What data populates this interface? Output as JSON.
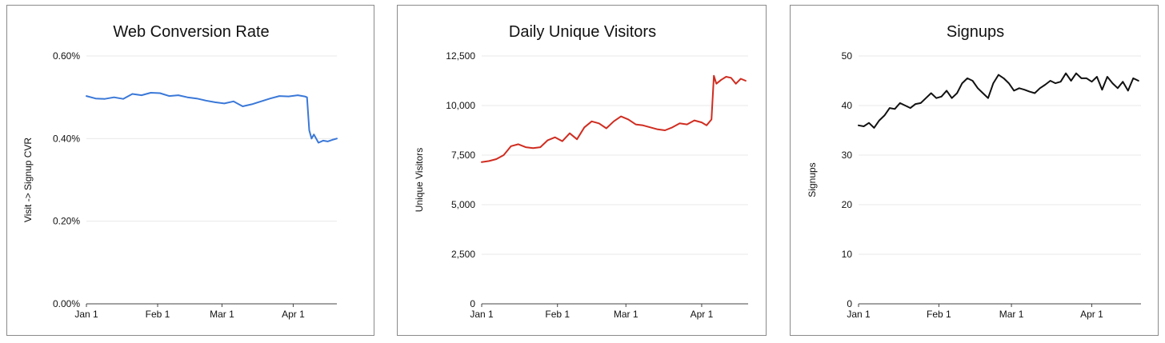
{
  "chart_data": [
    {
      "type": "line",
      "title": "Web Conversion Rate",
      "xlabel": "",
      "ylabel": "Visit -> Signup CVR",
      "ylim": [
        0,
        0.6
      ],
      "y_ticks": [
        "0.00%",
        "0.20%",
        "0.40%",
        "0.60%"
      ],
      "x_ticks": [
        "Jan 1",
        "Feb 1",
        "Mar 1",
        "Apr 1"
      ],
      "grid": true,
      "color": "#3a78d8",
      "series": [
        {
          "x": [
            "Jan 1",
            "Jan 5",
            "Jan 9",
            "Jan 13",
            "Jan 17",
            "Jan 21",
            "Jan 25",
            "Jan 29",
            "Feb 2",
            "Feb 6",
            "Feb 10",
            "Feb 14",
            "Feb 18",
            "Feb 22",
            "Feb 26",
            "Mar 2",
            "Mar 6",
            "Mar 10",
            "Mar 14",
            "Mar 18",
            "Mar 22",
            "Mar 26",
            "Mar 30",
            "Apr 3",
            "Apr 6",
            "Apr 7",
            "Apr 8",
            "Apr 9",
            "Apr 10",
            "Apr 12",
            "Apr 14",
            "Apr 16",
            "Apr 18",
            "Apr 20"
          ],
          "values": [
            0.503,
            0.497,
            0.496,
            0.5,
            0.496,
            0.508,
            0.505,
            0.511,
            0.51,
            0.503,
            0.505,
            0.5,
            0.497,
            0.492,
            0.488,
            0.485,
            0.49,
            0.478,
            0.483,
            0.49,
            0.497,
            0.503,
            0.502,
            0.505,
            0.502,
            0.5,
            0.42,
            0.4,
            0.41,
            0.39,
            0.395,
            0.393,
            0.397,
            0.4
          ]
        }
      ]
    },
    {
      "type": "line",
      "title": "Daily Unique Visitors",
      "xlabel": "",
      "ylabel": "Unique Visitors",
      "ylim": [
        0,
        12500
      ],
      "y_ticks": [
        "0",
        "2,500",
        "5,000",
        "7,500",
        "10,000",
        "12,500"
      ],
      "x_ticks": [
        "Jan 1",
        "Feb 1",
        "Mar 1",
        "Apr 1"
      ],
      "grid": true,
      "color": "#d02c20",
      "series": [
        {
          "x": [
            "Jan 1",
            "Jan 4",
            "Jan 7",
            "Jan 10",
            "Jan 13",
            "Jan 16",
            "Jan 19",
            "Jan 22",
            "Jan 25",
            "Jan 28",
            "Jan 31",
            "Feb 3",
            "Feb 6",
            "Feb 9",
            "Feb 12",
            "Feb 15",
            "Feb 18",
            "Feb 21",
            "Feb 24",
            "Feb 27",
            "Mar 2",
            "Mar 5",
            "Mar 8",
            "Mar 11",
            "Mar 14",
            "Mar 17",
            "Mar 20",
            "Mar 23",
            "Mar 26",
            "Mar 29",
            "Apr 1",
            "Apr 3",
            "Apr 5",
            "Apr 6",
            "Apr 7",
            "Apr 9",
            "Apr 11",
            "Apr 13",
            "Apr 15",
            "Apr 17",
            "Apr 19"
          ],
          "values": [
            7150,
            7200,
            7300,
            7500,
            7950,
            8050,
            7900,
            7850,
            7900,
            8250,
            8400,
            8200,
            8600,
            8300,
            8900,
            9200,
            9100,
            8850,
            9200,
            9450,
            9300,
            9050,
            9000,
            8900,
            8800,
            8750,
            8900,
            9100,
            9050,
            9250,
            9150,
            9000,
            9300,
            11500,
            11100,
            11300,
            11450,
            11400,
            11100,
            11350,
            11250
          ]
        }
      ]
    },
    {
      "type": "line",
      "title": "Signups",
      "xlabel": "",
      "ylabel": "Signups",
      "ylim": [
        0,
        50
      ],
      "y_ticks": [
        "0",
        "10",
        "20",
        "30",
        "40",
        "50"
      ],
      "x_ticks": [
        "Jan 1",
        "Feb 1",
        "Mar 1",
        "Apr 1"
      ],
      "grid": true,
      "color": "#111111",
      "series": [
        {
          "x": [
            "Jan 1",
            "Jan 3",
            "Jan 5",
            "Jan 7",
            "Jan 9",
            "Jan 11",
            "Jan 13",
            "Jan 15",
            "Jan 17",
            "Jan 19",
            "Jan 21",
            "Jan 23",
            "Jan 25",
            "Jan 27",
            "Jan 29",
            "Jan 31",
            "Feb 2",
            "Feb 4",
            "Feb 6",
            "Feb 8",
            "Feb 10",
            "Feb 12",
            "Feb 14",
            "Feb 16",
            "Feb 18",
            "Feb 20",
            "Feb 22",
            "Feb 24",
            "Feb 26",
            "Feb 28",
            "Mar 2",
            "Mar 4",
            "Mar 6",
            "Mar 8",
            "Mar 10",
            "Mar 12",
            "Mar 14",
            "Mar 16",
            "Mar 18",
            "Mar 20",
            "Mar 22",
            "Mar 24",
            "Mar 26",
            "Mar 28",
            "Mar 30",
            "Apr 1",
            "Apr 3",
            "Apr 5",
            "Apr 7",
            "Apr 9",
            "Apr 11",
            "Apr 13",
            "Apr 15",
            "Apr 17",
            "Apr 19"
          ],
          "values": [
            36,
            35.8,
            36.5,
            35.5,
            37,
            38,
            39.5,
            39.3,
            40.5,
            40,
            39.5,
            40.3,
            40.5,
            41.5,
            42.5,
            41.5,
            41.8,
            43,
            41.5,
            42.5,
            44.5,
            45.5,
            45,
            43.5,
            42.5,
            41.5,
            44.5,
            46.2,
            45.5,
            44.5,
            43,
            43.5,
            43.2,
            42.8,
            42.5,
            43.5,
            44.2,
            45,
            44.5,
            44.8,
            46.5,
            45,
            46.5,
            45.5,
            45.5,
            44.8,
            45.8,
            43.2,
            45.8,
            44.5,
            43.5,
            44.8,
            43,
            45.5,
            45
          ]
        }
      ]
    }
  ]
}
